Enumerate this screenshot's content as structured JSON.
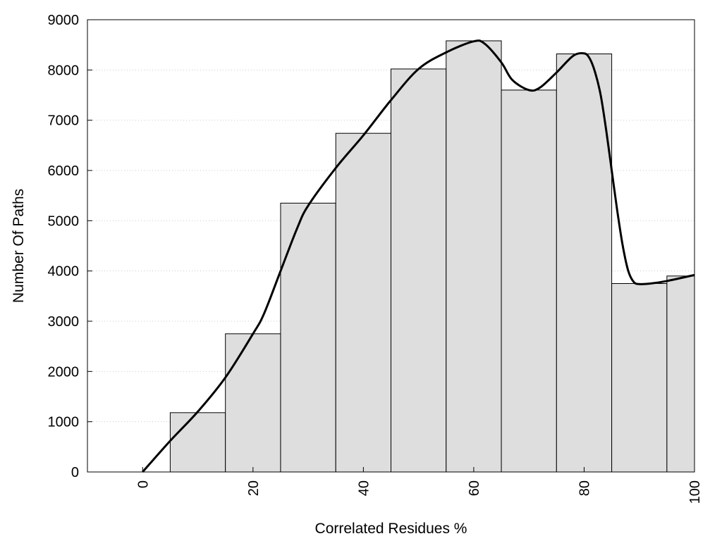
{
  "chart_data": {
    "type": "bar",
    "xlabel": "Correlated Residues %",
    "ylabel": "Number Of Paths",
    "xlim": [
      -10,
      100
    ],
    "ylim": [
      0,
      9000
    ],
    "grid": true,
    "xticks": [
      0,
      20,
      40,
      60,
      80,
      100
    ],
    "yticks": [
      0,
      1000,
      2000,
      3000,
      4000,
      5000,
      6000,
      7000,
      8000,
      9000
    ],
    "bins": [
      {
        "x0": 5,
        "x1": 15,
        "value": 1180
      },
      {
        "x0": 15,
        "x1": 25,
        "value": 2750
      },
      {
        "x0": 25,
        "x1": 35,
        "value": 5350
      },
      {
        "x0": 35,
        "x1": 45,
        "value": 6740
      },
      {
        "x0": 45,
        "x1": 55,
        "value": 8020
      },
      {
        "x0": 55,
        "x1": 65,
        "value": 8580
      },
      {
        "x0": 65,
        "x1": 75,
        "value": 7600
      },
      {
        "x0": 75,
        "x1": 85,
        "value": 8320
      },
      {
        "x0": 85,
        "x1": 95,
        "value": 3750
      },
      {
        "x0": 95,
        "x1": 100,
        "value": 3900
      }
    ],
    "curve": [
      [
        0,
        0
      ],
      [
        5,
        620
      ],
      [
        10,
        1200
      ],
      [
        15,
        1880
      ],
      [
        20,
        2750
      ],
      [
        22,
        3150
      ],
      [
        25,
        4000
      ],
      [
        28,
        4850
      ],
      [
        30,
        5300
      ],
      [
        35,
        6050
      ],
      [
        40,
        6700
      ],
      [
        45,
        7400
      ],
      [
        50,
        8020
      ],
      [
        55,
        8350
      ],
      [
        60,
        8570
      ],
      [
        62,
        8520
      ],
      [
        65,
        8150
      ],
      [
        67,
        7800
      ],
      [
        70,
        7600
      ],
      [
        72,
        7650
      ],
      [
        75,
        7950
      ],
      [
        78,
        8280
      ],
      [
        80,
        8330
      ],
      [
        81,
        8230
      ],
      [
        82,
        7950
      ],
      [
        83,
        7500
      ],
      [
        84,
        6800
      ],
      [
        85,
        6000
      ],
      [
        86,
        5200
      ],
      [
        87,
        4500
      ],
      [
        88,
        4000
      ],
      [
        89,
        3780
      ],
      [
        90,
        3740
      ],
      [
        92,
        3750
      ],
      [
        95,
        3800
      ],
      [
        100,
        3920
      ]
    ],
    "colors": {
      "bar_fill": "#dedede",
      "bar_stroke": "#000000",
      "curve": "#000000",
      "grid": "#cccccc"
    }
  }
}
